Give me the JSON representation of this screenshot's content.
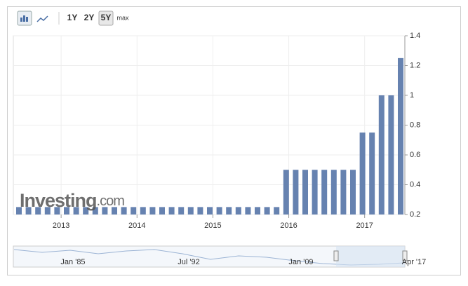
{
  "toolbar": {
    "ranges": [
      "1Y",
      "2Y",
      "5Y",
      "max"
    ]
  },
  "watermark": {
    "brand": "Investing",
    "suffix": ".com"
  },
  "navigator": {
    "labels": [
      "Jan '85",
      "Jul '92",
      "Jan '09",
      "Apr '17"
    ]
  },
  "chart_data": {
    "type": "bar",
    "color": "#6682b0",
    "categories": [
      null,
      null,
      null,
      null,
      null,
      null,
      null,
      null,
      null,
      null,
      null,
      null,
      null,
      null,
      null,
      null,
      null,
      null,
      null,
      null,
      null,
      null,
      null,
      null,
      null,
      null,
      null,
      null,
      null,
      null,
      null,
      null,
      null,
      null,
      null,
      null,
      null,
      null,
      null,
      null,
      null
    ],
    "values": [
      0.25,
      0.25,
      0.25,
      0.25,
      0.25,
      0.25,
      0.25,
      0.25,
      0.25,
      0.25,
      0.25,
      0.25,
      0.25,
      0.25,
      0.25,
      0.25,
      0.25,
      0.25,
      0.25,
      0.25,
      0.25,
      0.25,
      0.25,
      0.25,
      0.25,
      0.25,
      0.25,
      0.25,
      0.5,
      0.5,
      0.5,
      0.5,
      0.5,
      0.5,
      0.5,
      0.5,
      0.75,
      0.75,
      1,
      1,
      1.25
    ],
    "xlim": [
      2012.37,
      2017.53
    ],
    "xticks": [
      2013,
      2014,
      2015,
      2016,
      2017
    ],
    "ylim": [
      0.2,
      1.4
    ],
    "yticks": [
      0.2,
      0.4,
      0.6,
      0.8,
      1,
      1.2,
      1.4
    ],
    "grid": true
  }
}
